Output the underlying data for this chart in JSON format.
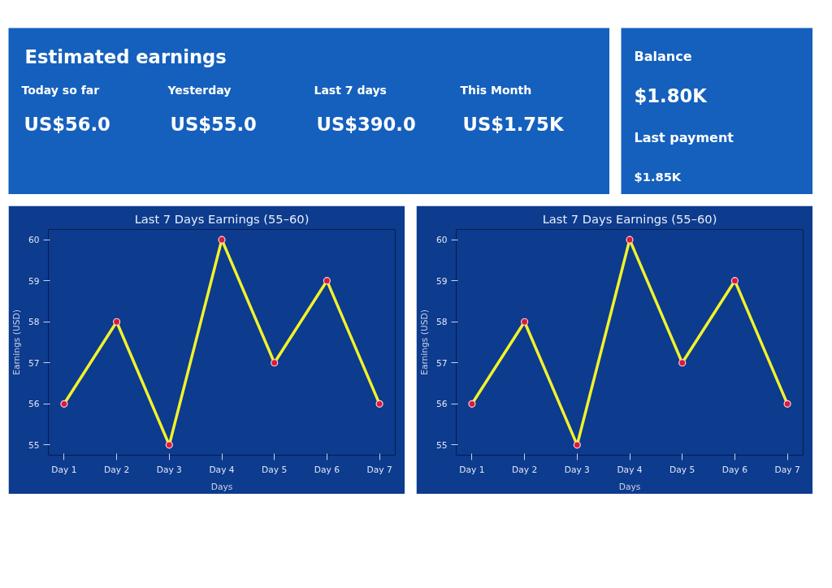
{
  "chart_data": [
    {
      "type": "other",
      "title": "Estimated earnings",
      "annotations": [
        "Today so far",
        "US$56.0",
        "Yesterday",
        "US$55.0",
        "Last 7 days",
        "US$390.0",
        "This Month",
        "US$1.75K"
      ]
    },
    {
      "type": "other",
      "annotations": [
        "Balance",
        "$1.80K",
        "Last payment",
        "$1.85K"
      ]
    },
    {
      "type": "line",
      "title": "Last 7 Days Earnings (55–60)",
      "xlabel": "Days",
      "ylabel": "Earnings (USD)",
      "categories": [
        "Day 1",
        "Day 2",
        "Day 3",
        "Day 4",
        "Day 5",
        "Day 6",
        "Day 7"
      ],
      "series": [
        {
          "color": "#f2f22a",
          "values": [
            56,
            58,
            55,
            60,
            57,
            59,
            56
          ]
        }
      ],
      "ylim": [
        54.75,
        60.25
      ],
      "yticks": [
        55,
        56,
        57,
        58,
        59,
        60
      ],
      "grid": false,
      "marker": "circle",
      "line_style": "solid"
    },
    {
      "type": "line",
      "title": "Last 7 Days Earnings (55–60)",
      "xlabel": "Days",
      "ylabel": "Earnings (USD)",
      "categories": [
        "Day 1",
        "Day 2",
        "Day 3",
        "Day 4",
        "Day 5",
        "Day 6",
        "Day 7"
      ],
      "series": [
        {
          "color": "#f2f22a",
          "values": [
            56,
            58,
            55,
            60,
            57,
            59,
            56
          ]
        }
      ],
      "ylim": [
        54.75,
        60.25
      ],
      "yticks": [
        55,
        56,
        57,
        58,
        59,
        60
      ],
      "grid": false,
      "marker": "circle",
      "line_style": "solid"
    }
  ]
}
